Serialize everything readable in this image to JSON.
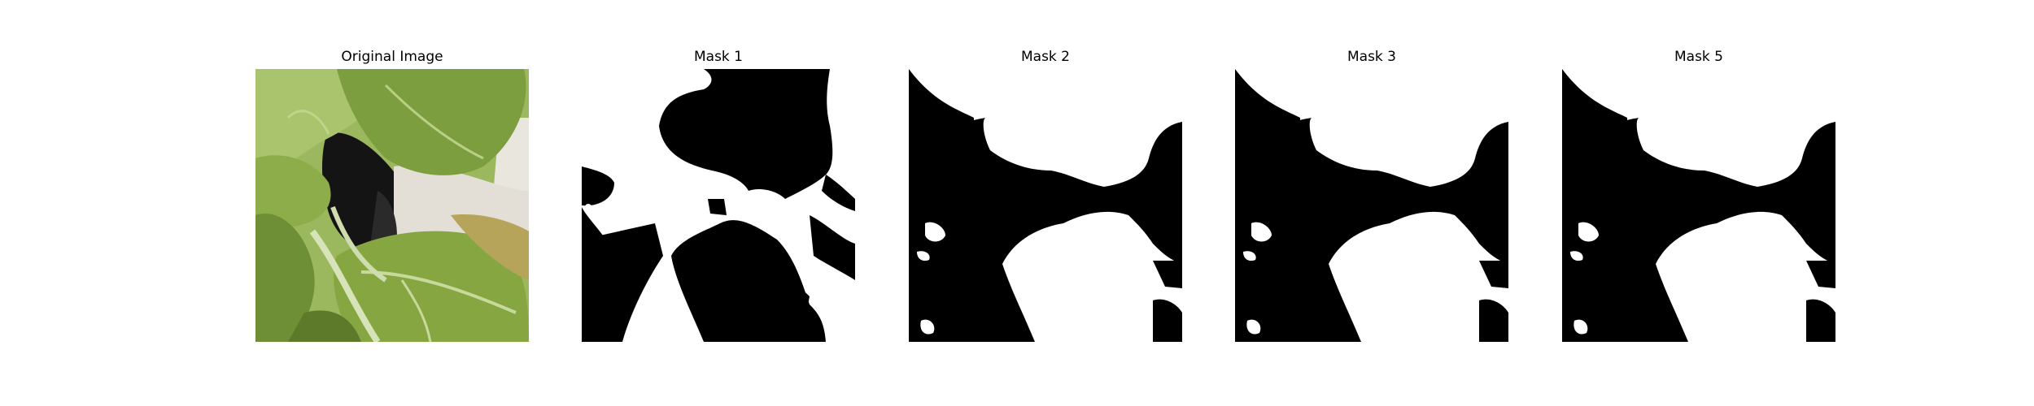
{
  "panels": [
    {
      "title": "Original Image",
      "kind": "photo",
      "description": "green leafy plant with dark pot and light stems"
    },
    {
      "title": "Mask 1",
      "kind": "mask"
    },
    {
      "title": "Mask 2",
      "kind": "mask"
    },
    {
      "title": "Mask 3",
      "kind": "mask"
    },
    {
      "title": "Mask 5",
      "kind": "mask"
    }
  ],
  "colors": {
    "mask_foreground": "#ffffff",
    "mask_background": "#000000",
    "leaf_light": "#a8c26a",
    "leaf_mid": "#7a9a3e",
    "leaf_dark": "#4f6b22",
    "pot_dark": "#151515",
    "pot_light": "#e6e2da"
  }
}
